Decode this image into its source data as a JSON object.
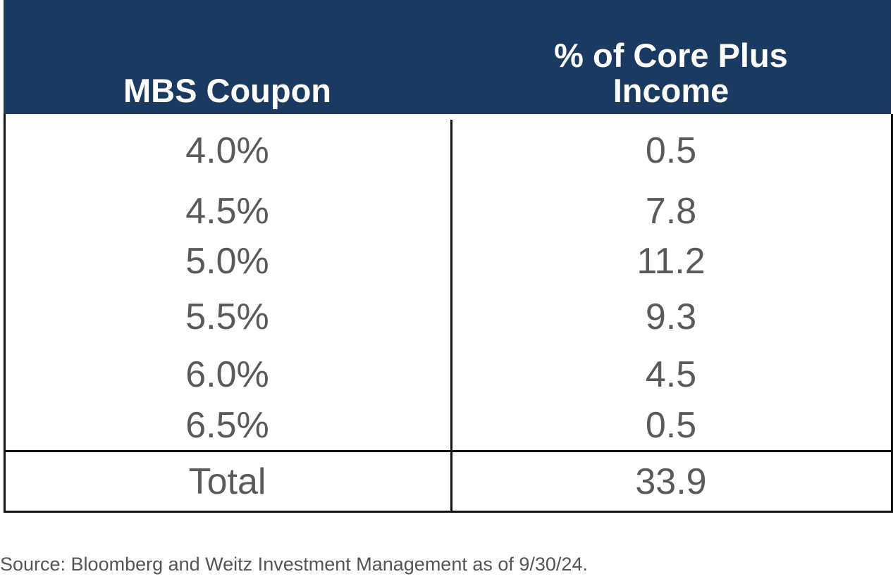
{
  "chart_data": {
    "type": "table",
    "columns": [
      "MBS Coupon",
      "% of Core Plus Income"
    ],
    "column_lines": [
      [
        "MBS Coupon"
      ],
      [
        "% of Core Plus",
        "Income"
      ]
    ],
    "rows": [
      {
        "coupon": "4.0%",
        "pct": "0.5"
      },
      {
        "coupon": "4.5%",
        "pct": "7.8"
      },
      {
        "coupon": "5.0%",
        "pct": "11.2"
      },
      {
        "coupon": "5.5%",
        "pct": "9.3"
      },
      {
        "coupon": "6.0%",
        "pct": "4.5"
      },
      {
        "coupon": "6.5%",
        "pct": "0.5"
      }
    ],
    "total": {
      "label": "Total",
      "value": "33.9"
    }
  },
  "source": "Source: Bloomberg and Weitz Investment Management as of 9/30/24.",
  "colors": {
    "header_bg": "#1b3a61",
    "header_text": "#ffffff",
    "cell_text": "#5a5a5a",
    "border": "#111111"
  }
}
